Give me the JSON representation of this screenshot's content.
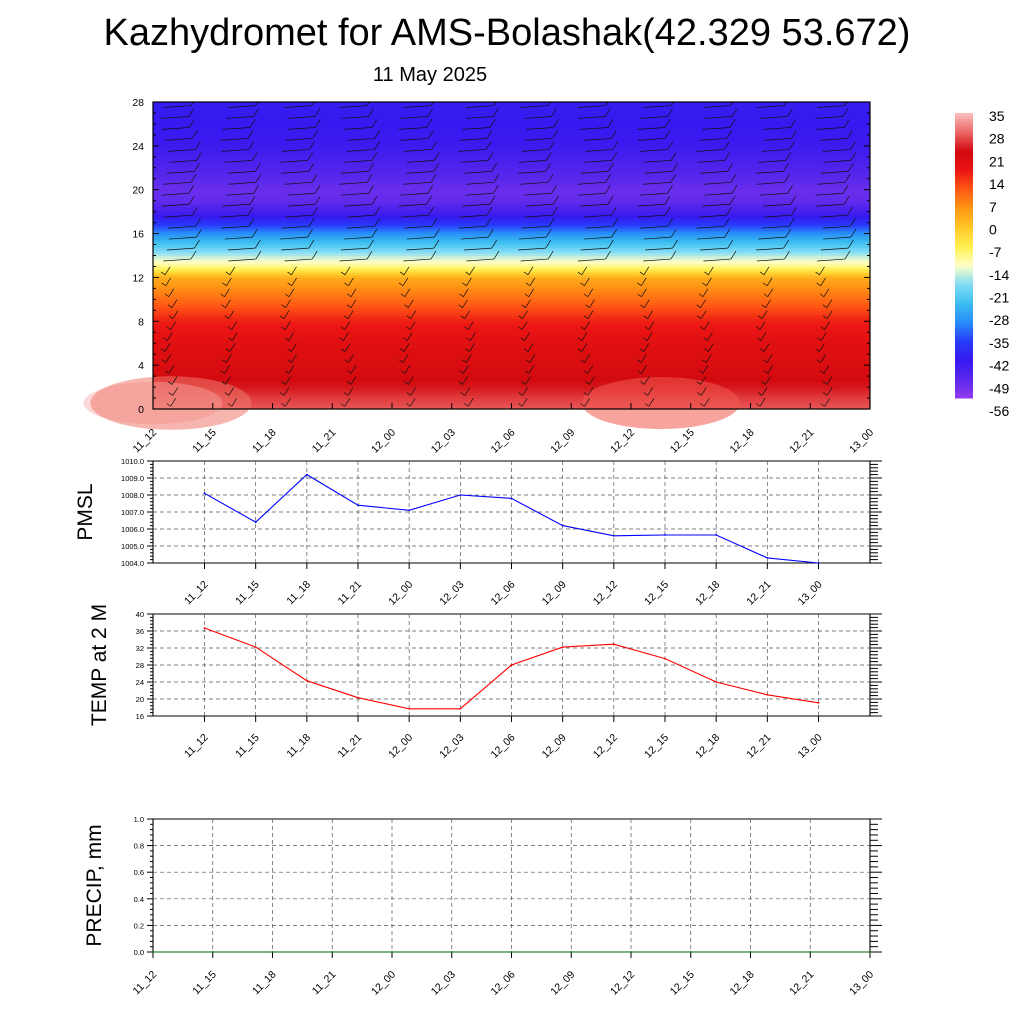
{
  "title": "Kazhydromet for AMS-Bolashak(42.329 53.672)",
  "date": "11 May 2025",
  "time_labels": [
    "11_12",
    "11_15",
    "11_18",
    "11_21",
    "12_00",
    "12_03",
    "12_06",
    "12_09",
    "12_12",
    "12_15",
    "12_18",
    "12_21",
    "13_00"
  ],
  "colors": {
    "pmsl_line": "#0000ff",
    "temp_line": "#ff0000",
    "precip_line": "#006400",
    "grid": "#555555"
  },
  "chart_data": [
    {
      "type": "heatmap",
      "title": "Kazhydromet for AMS-Bolashak(42.329 53.672)",
      "subtitle": "11 May 2025",
      "ylim": [
        0,
        28
      ],
      "yticks": [
        0,
        4,
        8,
        12,
        16,
        20,
        24,
        28
      ],
      "x": [
        "11_12",
        "11_15",
        "11_18",
        "11_21",
        "12_00",
        "12_03",
        "12_06",
        "12_09",
        "12_12",
        "12_15",
        "12_18",
        "12_21",
        "13_00"
      ],
      "colorbar_labels": [
        "35",
        "28",
        "21",
        "14",
        "7",
        "0",
        "-7",
        "-14",
        "-21",
        "-28",
        "-35",
        "-42",
        "-49",
        "-56"
      ],
      "colorbar_range": [
        -63,
        42
      ],
      "level_profile": [
        {
          "level": 0,
          "value": 34
        },
        {
          "level": 1,
          "value": 32
        },
        {
          "level": 2,
          "value": 29
        },
        {
          "level": 4,
          "value": 26
        },
        {
          "level": 6,
          "value": 24
        },
        {
          "level": 8,
          "value": 20
        },
        {
          "level": 10,
          "value": 12
        },
        {
          "level": 12,
          "value": 4
        },
        {
          "level": 13,
          "value": -10
        },
        {
          "level": 14,
          "value": -18
        },
        {
          "level": 15,
          "value": -26
        },
        {
          "level": 16,
          "value": -34
        },
        {
          "level": 17,
          "value": -44
        },
        {
          "level": 18,
          "value": -52
        },
        {
          "level": 19,
          "value": -57
        },
        {
          "level": 20,
          "value": -58
        },
        {
          "level": 22,
          "value": -54
        },
        {
          "level": 24,
          "value": -50
        },
        {
          "level": 26,
          "value": -49
        },
        {
          "level": 28,
          "value": -48
        }
      ],
      "wind_barbs": "present"
    },
    {
      "type": "line",
      "ylabel": "PMSL",
      "ylim": [
        1004.0,
        1010.0
      ],
      "yticks": [
        "1004.0",
        "1005.0",
        "1006.0",
        "1007.0",
        "1008.0",
        "1009.0",
        "1010.0"
      ],
      "x": [
        "11_12",
        "11_15",
        "11_18",
        "11_21",
        "12_00",
        "12_03",
        "12_06",
        "12_09",
        "12_12",
        "12_15",
        "12_18",
        "12_21",
        "13_00"
      ],
      "values": [
        1008.1,
        1006.4,
        1009.2,
        1007.4,
        1007.1,
        1008.0,
        1007.8,
        1006.2,
        1005.6,
        1005.65,
        1005.65,
        1004.3,
        1004.0
      ],
      "grid": true
    },
    {
      "type": "line",
      "ylabel": "TEMP at 2 M",
      "ylim": [
        16,
        40
      ],
      "yticks": [
        "16",
        "20",
        "24",
        "28",
        "32",
        "36",
        "40"
      ],
      "x": [
        "11_12",
        "11_15",
        "11_18",
        "11_21",
        "12_00",
        "12_03",
        "12_06",
        "12_09",
        "12_12",
        "12_15",
        "12_18",
        "12_21",
        "13_00"
      ],
      "values": [
        36.7,
        32.2,
        24.3,
        20.3,
        17.7,
        17.7,
        28.0,
        32.2,
        32.9,
        29.5,
        24.0,
        21.0,
        19.1
      ],
      "grid": true
    },
    {
      "type": "line",
      "ylabel": "PRECIP, mm",
      "ylim": [
        0.0,
        1.0
      ],
      "yticks": [
        "0.0",
        "0.2",
        "0.4",
        "0.6",
        "0.8",
        "1.0"
      ],
      "x": [
        "11_12",
        "11_15",
        "11_18",
        "11_21",
        "12_00",
        "12_03",
        "12_06",
        "12_09",
        "12_12",
        "12_15",
        "12_18",
        "12_21",
        "13_00"
      ],
      "values": [
        0,
        0,
        0,
        0,
        0,
        0,
        0,
        0,
        0,
        0,
        0,
        0,
        0
      ],
      "grid": true
    }
  ]
}
